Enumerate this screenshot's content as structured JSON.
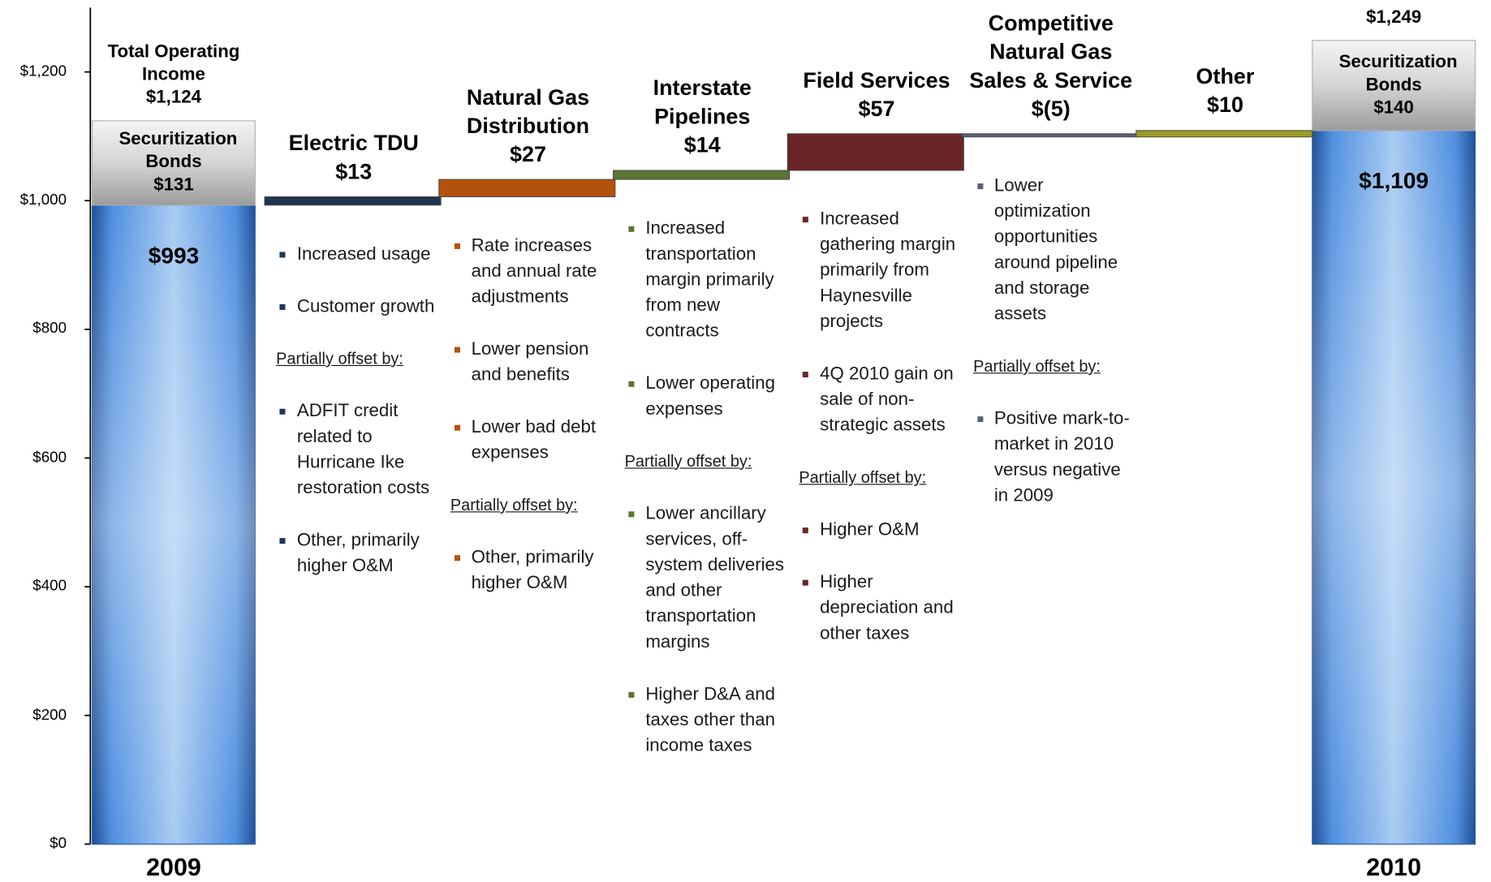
{
  "chart_data": {
    "type": "waterfall",
    "ylim": [
      0,
      1300
    ],
    "yticks": [
      {
        "value": 0,
        "label": "$0"
      },
      {
        "value": 200,
        "label": "$200"
      },
      {
        "value": 400,
        "label": "$400"
      },
      {
        "value": 600,
        "label": "$600"
      },
      {
        "value": 800,
        "label": "$800"
      },
      {
        "value": 1000,
        "label": "$1,000"
      },
      {
        "value": 1200,
        "label": "$1,200"
      }
    ],
    "bonds_name": "Securitization Bonds",
    "totals": [
      {
        "category": "2009",
        "label": "Total Operating Income",
        "total": 1124,
        "total_label": "$1,124",
        "base": 993,
        "base_label": "$993",
        "bonds": 131,
        "bonds_label": "$131"
      },
      {
        "category": "2010",
        "total": 1249,
        "total_label": "$1,249",
        "base": 1109,
        "base_label": "$1,109",
        "bonds": 140,
        "bonds_label": "$140"
      }
    ],
    "steps": [
      {
        "name": "Electric TDU",
        "value": 13,
        "value_label": "$13",
        "color": "#1f3550",
        "drivers": [
          "Increased usage",
          "Customer growth"
        ],
        "offset_label": "Partially offset by:",
        "offsets": [
          "ADFIT credit related to Hurricane Ike restoration costs",
          "Other, primarily higher O&M"
        ]
      },
      {
        "name": "Natural Gas Distribution",
        "value": 27,
        "value_label": "$27",
        "color": "#b3520c",
        "drivers": [
          "Rate increases and annual rate adjustments",
          "Lower pension and benefits",
          "Lower bad debt expenses"
        ],
        "offset_label": "Partially offset by:",
        "offsets": [
          "Other, primarily higher O&M"
        ]
      },
      {
        "name": "Interstate Pipelines",
        "value": 14,
        "value_label": "$14",
        "color": "#5c7431",
        "drivers": [
          "Increased transportation margin primarily from new contracts",
          "Lower operating expenses"
        ],
        "offset_label": "Partially offset by:",
        "offsets": [
          "Lower ancillary services, off-system deliveries and other transportation margins",
          "Higher D&A and taxes other than income taxes"
        ]
      },
      {
        "name": "Field Services",
        "value": 57,
        "value_label": "$57",
        "color": "#6a2527",
        "drivers": [
          "Increased gathering margin primarily from Haynesville projects",
          "4Q 2010 gain on sale of non-strategic assets"
        ],
        "offset_label": "Partially offset by:",
        "offsets": [
          "Higher O&M",
          "Higher depreciation and other taxes"
        ]
      },
      {
        "name": "Competitive Natural Gas Sales & Service",
        "value": -5,
        "value_label": "$(5)",
        "color": "#5a5f7a",
        "drivers": [
          "Lower optimization opportunities around pipeline and storage assets"
        ],
        "offset_label": "Partially offset by:",
        "offsets": [
          "Positive mark-to-market in 2010 versus negative in 2009"
        ]
      },
      {
        "name": "Other",
        "value": 10,
        "value_label": "$10",
        "color": "#9c9a22",
        "drivers": [],
        "offsets": []
      }
    ]
  }
}
